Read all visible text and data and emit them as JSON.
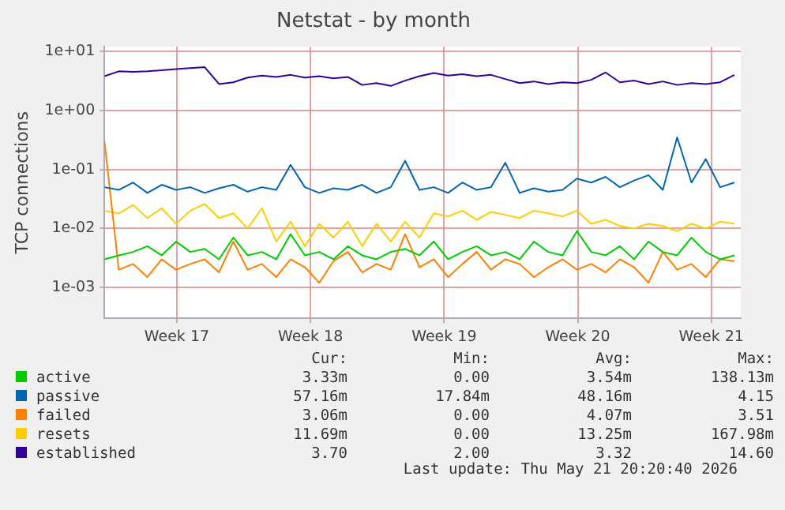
{
  "chart_data": {
    "type": "line",
    "title": "Netstat - by month",
    "ylabel": "TCP connections",
    "log": "y",
    "grid": true,
    "legend": "bottom",
    "line_style": "solid",
    "x": [
      "2026-04-18T12:00",
      "2026-04-19T06:00",
      "2026-04-20T00:00",
      "2026-04-20T18:00",
      "2026-04-21T12:00",
      "2026-04-22T06:00",
      "2026-04-23T00:00",
      "2026-04-23T18:00",
      "2026-04-24T12:00",
      "2026-04-25T06:00",
      "2026-04-26T00:00",
      "2026-04-26T18:00",
      "2026-04-27T12:00",
      "2026-04-28T06:00",
      "2026-04-29T00:00",
      "2026-04-29T18:00",
      "2026-04-30T12:00",
      "2026-05-01T06:00",
      "2026-05-02T00:00",
      "2026-05-02T18:00",
      "2026-05-03T12:00",
      "2026-05-04T06:00",
      "2026-05-05T00:00",
      "2026-05-05T18:00",
      "2026-05-06T12:00",
      "2026-05-07T06:00",
      "2026-05-08T00:00",
      "2026-05-08T18:00",
      "2026-05-09T12:00",
      "2026-05-10T06:00",
      "2026-05-11T00:00",
      "2026-05-11T18:00",
      "2026-05-12T12:00",
      "2026-05-13T06:00",
      "2026-05-14T00:00",
      "2026-05-14T18:00",
      "2026-05-15T12:00",
      "2026-05-16T06:00",
      "2026-05-17T00:00",
      "2026-05-17T18:00",
      "2026-05-18T12:00",
      "2026-05-19T06:00",
      "2026-05-20T00:00",
      "2026-05-20T18:00",
      "2026-05-21T12:00"
    ],
    "xlim": [
      "2026-04-18T12:00",
      "2026-05-21T20:00"
    ],
    "xticks": [
      {
        "value": "2026-04-22T07:00",
        "label": "Week 17"
      },
      {
        "value": "2026-04-29T07:00",
        "label": "Week 18"
      },
      {
        "value": "2026-05-06T07:00",
        "label": "Week 19"
      },
      {
        "value": "2026-05-13T07:00",
        "label": "Week 20"
      },
      {
        "value": "2026-05-20T07:00",
        "label": "Week 21"
      }
    ],
    "ylim": [
      0.0003,
      12
    ],
    "yticks": [
      {
        "value": 0.001,
        "label": "1e-03"
      },
      {
        "value": 0.01,
        "label": "1e-02"
      },
      {
        "value": 0.1,
        "label": "1e-01"
      },
      {
        "value": 1,
        "label": "1e+00"
      },
      {
        "value": 10,
        "label": "1e+01"
      }
    ],
    "series": [
      {
        "name": "active",
        "color": "#00cc00",
        "values": [
          0.003,
          0.0035,
          0.004,
          0.005,
          0.0035,
          0.006,
          0.004,
          0.0045,
          0.003,
          0.007,
          0.0035,
          0.004,
          0.003,
          0.008,
          0.0035,
          0.004,
          0.003,
          0.005,
          0.0035,
          0.003,
          0.004,
          0.0045,
          0.0035,
          0.006,
          0.003,
          0.004,
          0.005,
          0.0035,
          0.004,
          0.003,
          0.006,
          0.004,
          0.0035,
          0.009,
          0.004,
          0.0035,
          0.005,
          0.003,
          0.006,
          0.004,
          0.0035,
          0.007,
          0.004,
          0.003,
          0.0035
        ]
      },
      {
        "name": "passive",
        "color": "#0066b3",
        "values": [
          0.05,
          0.045,
          0.06,
          0.04,
          0.055,
          0.045,
          0.05,
          0.04,
          0.048,
          0.055,
          0.042,
          0.05,
          0.045,
          0.12,
          0.05,
          0.04,
          0.048,
          0.045,
          0.055,
          0.04,
          0.05,
          0.14,
          0.045,
          0.05,
          0.04,
          0.06,
          0.045,
          0.05,
          0.13,
          0.04,
          0.048,
          0.042,
          0.045,
          0.07,
          0.06,
          0.075,
          0.05,
          0.065,
          0.08,
          0.045,
          0.35,
          0.06,
          0.15,
          0.05,
          0.06
        ]
      },
      {
        "name": "failed",
        "color": "#ff8000",
        "values": [
          0.3,
          0.002,
          0.0025,
          0.0015,
          0.003,
          0.002,
          0.0025,
          0.003,
          0.0018,
          0.006,
          0.002,
          0.0025,
          0.0015,
          0.003,
          0.0022,
          0.0012,
          0.0028,
          0.004,
          0.0018,
          0.0025,
          0.002,
          0.008,
          0.0022,
          0.003,
          0.0015,
          0.0025,
          0.004,
          0.002,
          0.003,
          0.0025,
          0.0015,
          0.0022,
          0.003,
          0.002,
          0.0025,
          0.0018,
          0.003,
          0.0022,
          0.0012,
          0.004,
          0.002,
          0.0025,
          0.0015,
          0.003,
          0.0028
        ]
      },
      {
        "name": "resets",
        "color": "#ffcc00",
        "values": [
          0.02,
          0.018,
          0.025,
          0.015,
          0.022,
          0.012,
          0.02,
          0.026,
          0.015,
          0.018,
          0.01,
          0.022,
          0.006,
          0.013,
          0.005,
          0.012,
          0.007,
          0.013,
          0.005,
          0.012,
          0.006,
          0.013,
          0.007,
          0.018,
          0.016,
          0.02,
          0.014,
          0.019,
          0.017,
          0.015,
          0.02,
          0.018,
          0.016,
          0.02,
          0.012,
          0.014,
          0.011,
          0.01,
          0.012,
          0.011,
          0.009,
          0.012,
          0.01,
          0.013,
          0.012
        ]
      },
      {
        "name": "established",
        "color": "#330099",
        "values": [
          3.8,
          4.6,
          4.5,
          4.6,
          4.8,
          5.0,
          5.2,
          5.4,
          2.8,
          3.0,
          3.6,
          3.9,
          3.7,
          4.0,
          3.6,
          3.8,
          3.5,
          3.7,
          2.7,
          2.9,
          2.6,
          3.2,
          3.8,
          4.3,
          3.9,
          4.1,
          3.8,
          4.0,
          3.4,
          2.9,
          3.1,
          2.8,
          3.0,
          2.9,
          3.3,
          4.4,
          3.0,
          3.2,
          2.8,
          3.1,
          2.7,
          2.9,
          2.8,
          3.0,
          4.0
        ]
      }
    ],
    "annotations": [
      "Cur:",
      "Min:",
      "Avg:",
      "Max:",
      "3.33m",
      "0.00",
      "3.54m",
      "138.13m",
      "57.16m",
      "17.84m",
      "48.16m",
      "4.15",
      "3.06m",
      "0.00",
      "4.07m",
      "3.51",
      "11.69m",
      "0.00",
      "13.25m",
      "167.98m",
      "3.70",
      "2.00",
      "3.32",
      "14.60",
      "Last update: Thu May 21 20:20:40 2026"
    ]
  }
}
